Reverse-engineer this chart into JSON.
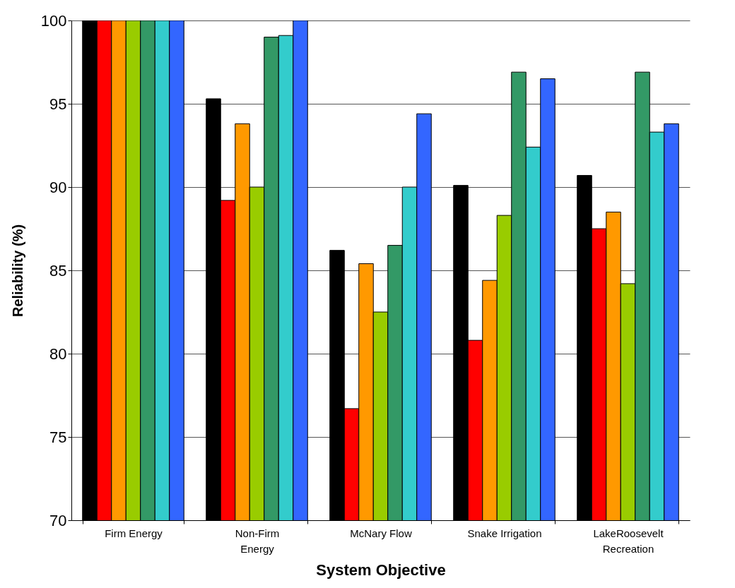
{
  "chart_data": {
    "type": "bar",
    "xlabel": "System Objective",
    "ylabel": "Reliability (%)",
    "categories": [
      "Firm Energy",
      "Non-Firm\nEnergy",
      "McNary Flow",
      "Snake Irrigation",
      "LakeRoosevelt\nRecreation"
    ],
    "series": [
      {
        "color": "#000000",
        "values": [
          100,
          95.3,
          86.2,
          90.1,
          90.7
        ]
      },
      {
        "color": "#ff0000",
        "values": [
          100,
          89.2,
          76.7,
          80.8,
          87.5
        ]
      },
      {
        "color": "#ff9900",
        "values": [
          100,
          93.8,
          85.4,
          84.4,
          88.5
        ]
      },
      {
        "color": "#99cc00",
        "values": [
          100,
          90,
          82.5,
          88.3,
          84.2
        ]
      },
      {
        "color": "#339966",
        "values": [
          100,
          99.0,
          86.5,
          96.9,
          96.9
        ]
      },
      {
        "color": "#33cccc",
        "values": [
          100,
          99.1,
          90,
          92.4,
          93.3
        ]
      },
      {
        "color": "#3366ff",
        "values": [
          100,
          100,
          94.4,
          96.5,
          93.8
        ]
      }
    ],
    "ylim": [
      70,
      100
    ],
    "yticks": [
      70,
      75,
      80,
      85,
      90,
      95,
      100
    ],
    "grid": "y"
  }
}
